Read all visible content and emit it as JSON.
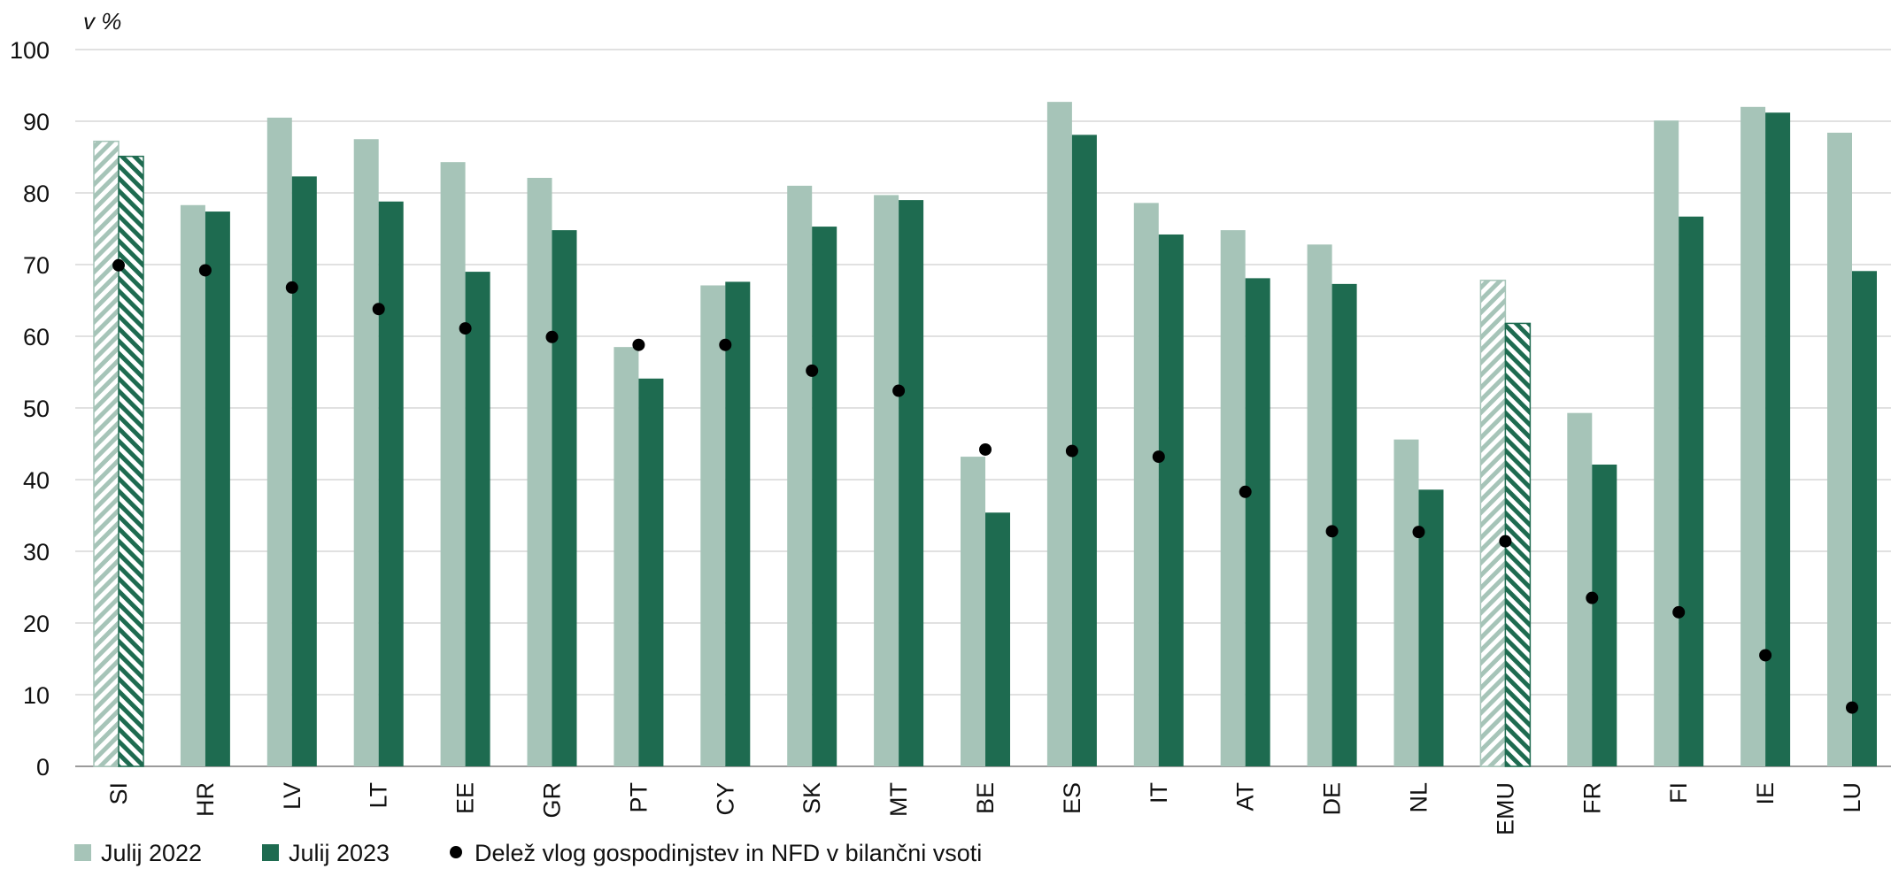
{
  "chart_data": {
    "type": "bar",
    "title": "",
    "ylabel": "v %",
    "xlabel": "",
    "ylim": [
      0,
      100
    ],
    "yticks": [
      0,
      10,
      20,
      30,
      40,
      50,
      60,
      70,
      80,
      90,
      100
    ],
    "grid": true,
    "legend_position": "bottom-left",
    "categories": [
      "SI",
      "HR",
      "LV",
      "LT",
      "EE",
      "GR",
      "PT",
      "CY",
      "SK",
      "MT",
      "BE",
      "ES",
      "IT",
      "AT",
      "DE",
      "NL",
      "EMU",
      "FR",
      "FI",
      "IE",
      "LU"
    ],
    "hatched_categories": [
      "SI",
      "EMU"
    ],
    "series": [
      {
        "name": "Julij 2022",
        "kind": "bar",
        "color": "#a6c4b8",
        "values": [
          87.2,
          78.3,
          90.5,
          87.5,
          84.3,
          82.1,
          58.5,
          67.1,
          81.0,
          79.7,
          43.2,
          92.7,
          78.6,
          74.8,
          72.8,
          45.6,
          67.8,
          49.3,
          90.1,
          92.0,
          88.4
        ]
      },
      {
        "name": "Julij 2023",
        "kind": "bar",
        "color": "#1e6b50",
        "values": [
          85.1,
          77.4,
          82.3,
          78.8,
          69.0,
          74.8,
          54.1,
          67.6,
          75.3,
          79.0,
          35.4,
          88.1,
          74.2,
          68.1,
          67.3,
          38.6,
          61.8,
          42.1,
          76.7,
          91.2,
          69.1
        ]
      },
      {
        "name": "Delež vlog gospodinjstev in NFD v bilančni vsoti",
        "kind": "point",
        "color": "#000000",
        "values": [
          69.9,
          69.2,
          66.8,
          63.8,
          61.1,
          59.9,
          58.8,
          58.8,
          55.2,
          52.4,
          44.2,
          44.0,
          43.2,
          38.3,
          32.8,
          32.7,
          31.4,
          23.5,
          21.5,
          15.5,
          8.2
        ]
      }
    ]
  }
}
